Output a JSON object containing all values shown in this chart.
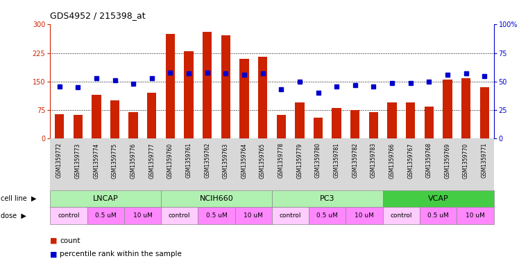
{
  "title": "GDS4952 / 215398_at",
  "samples": [
    "GSM1359772",
    "GSM1359773",
    "GSM1359774",
    "GSM1359775",
    "GSM1359776",
    "GSM1359777",
    "GSM1359760",
    "GSM1359761",
    "GSM1359762",
    "GSM1359763",
    "GSM1359764",
    "GSM1359765",
    "GSM1359778",
    "GSM1359779",
    "GSM1359780",
    "GSM1359781",
    "GSM1359782",
    "GSM1359783",
    "GSM1359766",
    "GSM1359767",
    "GSM1359768",
    "GSM1359769",
    "GSM1359770",
    "GSM1359771"
  ],
  "counts": [
    65,
    62,
    115,
    100,
    70,
    120,
    275,
    230,
    280,
    272,
    210,
    215,
    63,
    95,
    55,
    80,
    75,
    70,
    95,
    95,
    85,
    155,
    158,
    135
  ],
  "percentiles": [
    46,
    45,
    53,
    51,
    48,
    53,
    58,
    57,
    58,
    57,
    56,
    57,
    43,
    50,
    40,
    46,
    47,
    46,
    49,
    49,
    50,
    56,
    57,
    55
  ],
  "bar_color": "#CC2200",
  "dot_color": "#0000CC",
  "ylim_left": [
    0,
    300
  ],
  "ylim_right": [
    0,
    100
  ],
  "yticks_left": [
    0,
    75,
    150,
    225,
    300
  ],
  "ytick_labels_left": [
    "0",
    "75",
    "150",
    "225",
    "300"
  ],
  "ytick_labels_right": [
    "0",
    "25",
    "50",
    "75",
    "100%"
  ],
  "grid_lines": [
    75,
    150,
    225
  ],
  "bg_color": "#ffffff",
  "cell_line_groups": [
    {
      "name": "LNCAP",
      "start": 0,
      "end": 5,
      "color": "#b0f0b0"
    },
    {
      "name": "NCIH660",
      "start": 6,
      "end": 11,
      "color": "#b0f0b0"
    },
    {
      "name": "PC3",
      "start": 12,
      "end": 17,
      "color": "#b0f0b0"
    },
    {
      "name": "VCAP",
      "start": 18,
      "end": 23,
      "color": "#44cc44"
    }
  ],
  "dose_groups": [
    {
      "name": "control",
      "start": 0,
      "end": 1,
      "color": "#ffccff"
    },
    {
      "name": "0.5 uM",
      "start": 2,
      "end": 3,
      "color": "#ff88ff"
    },
    {
      "name": "10 uM",
      "start": 4,
      "end": 5,
      "color": "#ff88ff"
    },
    {
      "name": "control",
      "start": 6,
      "end": 7,
      "color": "#ffccff"
    },
    {
      "name": "0.5 uM",
      "start": 8,
      "end": 9,
      "color": "#ff88ff"
    },
    {
      "name": "10 uM",
      "start": 10,
      "end": 11,
      "color": "#ff88ff"
    },
    {
      "name": "control",
      "start": 12,
      "end": 13,
      "color": "#ffccff"
    },
    {
      "name": "0.5 uM",
      "start": 14,
      "end": 15,
      "color": "#ff88ff"
    },
    {
      "name": "10 uM",
      "start": 16,
      "end": 17,
      "color": "#ff88ff"
    },
    {
      "name": "control",
      "start": 18,
      "end": 19,
      "color": "#ffccff"
    },
    {
      "name": "0.5 uM",
      "start": 20,
      "end": 21,
      "color": "#ff88ff"
    },
    {
      "name": "10 uM",
      "start": 22,
      "end": 23,
      "color": "#ff88ff"
    }
  ]
}
